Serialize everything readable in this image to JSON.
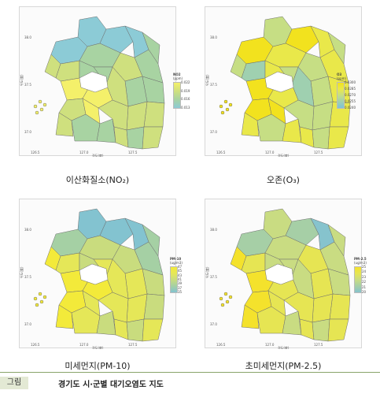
{
  "panels": [
    {
      "caption": "이산화질소(NO₂)",
      "legend_title": "NO2",
      "legend_unit": "(ppm)",
      "legend_ticks": [
        "0.022",
        "0.019",
        "0.016",
        "0.013"
      ],
      "palette": [
        "#f4f06a",
        "#cfe07e",
        "#a8d3a2",
        "#8ccbd6"
      ],
      "regions": [
        3,
        3,
        3,
        2,
        2,
        3,
        2,
        1,
        2,
        2,
        1,
        1,
        1,
        0,
        0,
        1,
        0,
        1,
        2,
        2,
        1,
        1,
        2,
        1,
        1,
        1,
        2,
        2
      ]
    },
    {
      "caption": "오존(O₃)",
      "legend_title": "O3",
      "legend_unit": "(ppm)",
      "legend_ticks": [
        "0.0300",
        "0.0285",
        "0.0270",
        "0.0255",
        "0.0240"
      ],
      "palette": [
        "#f2e21e",
        "#e9e84a",
        "#c6de84",
        "#9fd0b0",
        "#7ec2d8"
      ],
      "regions": [
        2,
        0,
        1,
        2,
        1,
        0,
        1,
        2,
        1,
        2,
        1,
        2,
        3,
        0,
        1,
        0,
        0,
        1,
        2,
        1,
        2,
        1,
        2,
        1,
        2,
        3,
        1,
        2
      ]
    },
    {
      "caption": "미세먼지(PM-10)",
      "legend_title": "PM-10",
      "legend_unit": "(ug/m3)",
      "legend_ticks": [
        "47",
        "45",
        "43",
        "41",
        "39",
        "37",
        "35"
      ],
      "palette": [
        "#f3ea3a",
        "#e5e758",
        "#c9dc7e",
        "#a5d0a4",
        "#83c3d0"
      ],
      "regions": [
        4,
        4,
        4,
        3,
        3,
        3,
        2,
        2,
        2,
        1,
        2,
        1,
        1,
        0,
        0,
        0,
        1,
        0,
        1,
        2,
        1,
        1,
        2,
        1,
        0,
        1,
        2,
        1
      ]
    },
    {
      "caption": "초미세먼지(PM-2.5)",
      "legend_title": "PM-2.5",
      "legend_unit": "(ug/m3)",
      "legend_ticks": [
        "25",
        "24",
        "23",
        "22",
        "21",
        "20"
      ],
      "palette": [
        "#f4e22c",
        "#e6e553",
        "#c9dc82",
        "#a6cfa6",
        "#86c3cd"
      ],
      "regions": [
        2,
        3,
        4,
        2,
        2,
        3,
        2,
        1,
        2,
        1,
        1,
        1,
        2,
        0,
        1,
        0,
        1,
        0,
        1,
        2,
        1,
        1,
        2,
        1,
        0,
        1,
        2,
        2
      ]
    }
  ],
  "axes": {
    "y_ticks": [
      "38.0",
      "37.5",
      "37.0"
    ],
    "x_ticks": [
      "126.5",
      "127.0",
      "127.5"
    ],
    "x_title": "경도(度)",
    "y_title": "위도(度)"
  },
  "footer": {
    "tag": "그림",
    "title": "경기도 시·군별 대기오염도 지도"
  }
}
